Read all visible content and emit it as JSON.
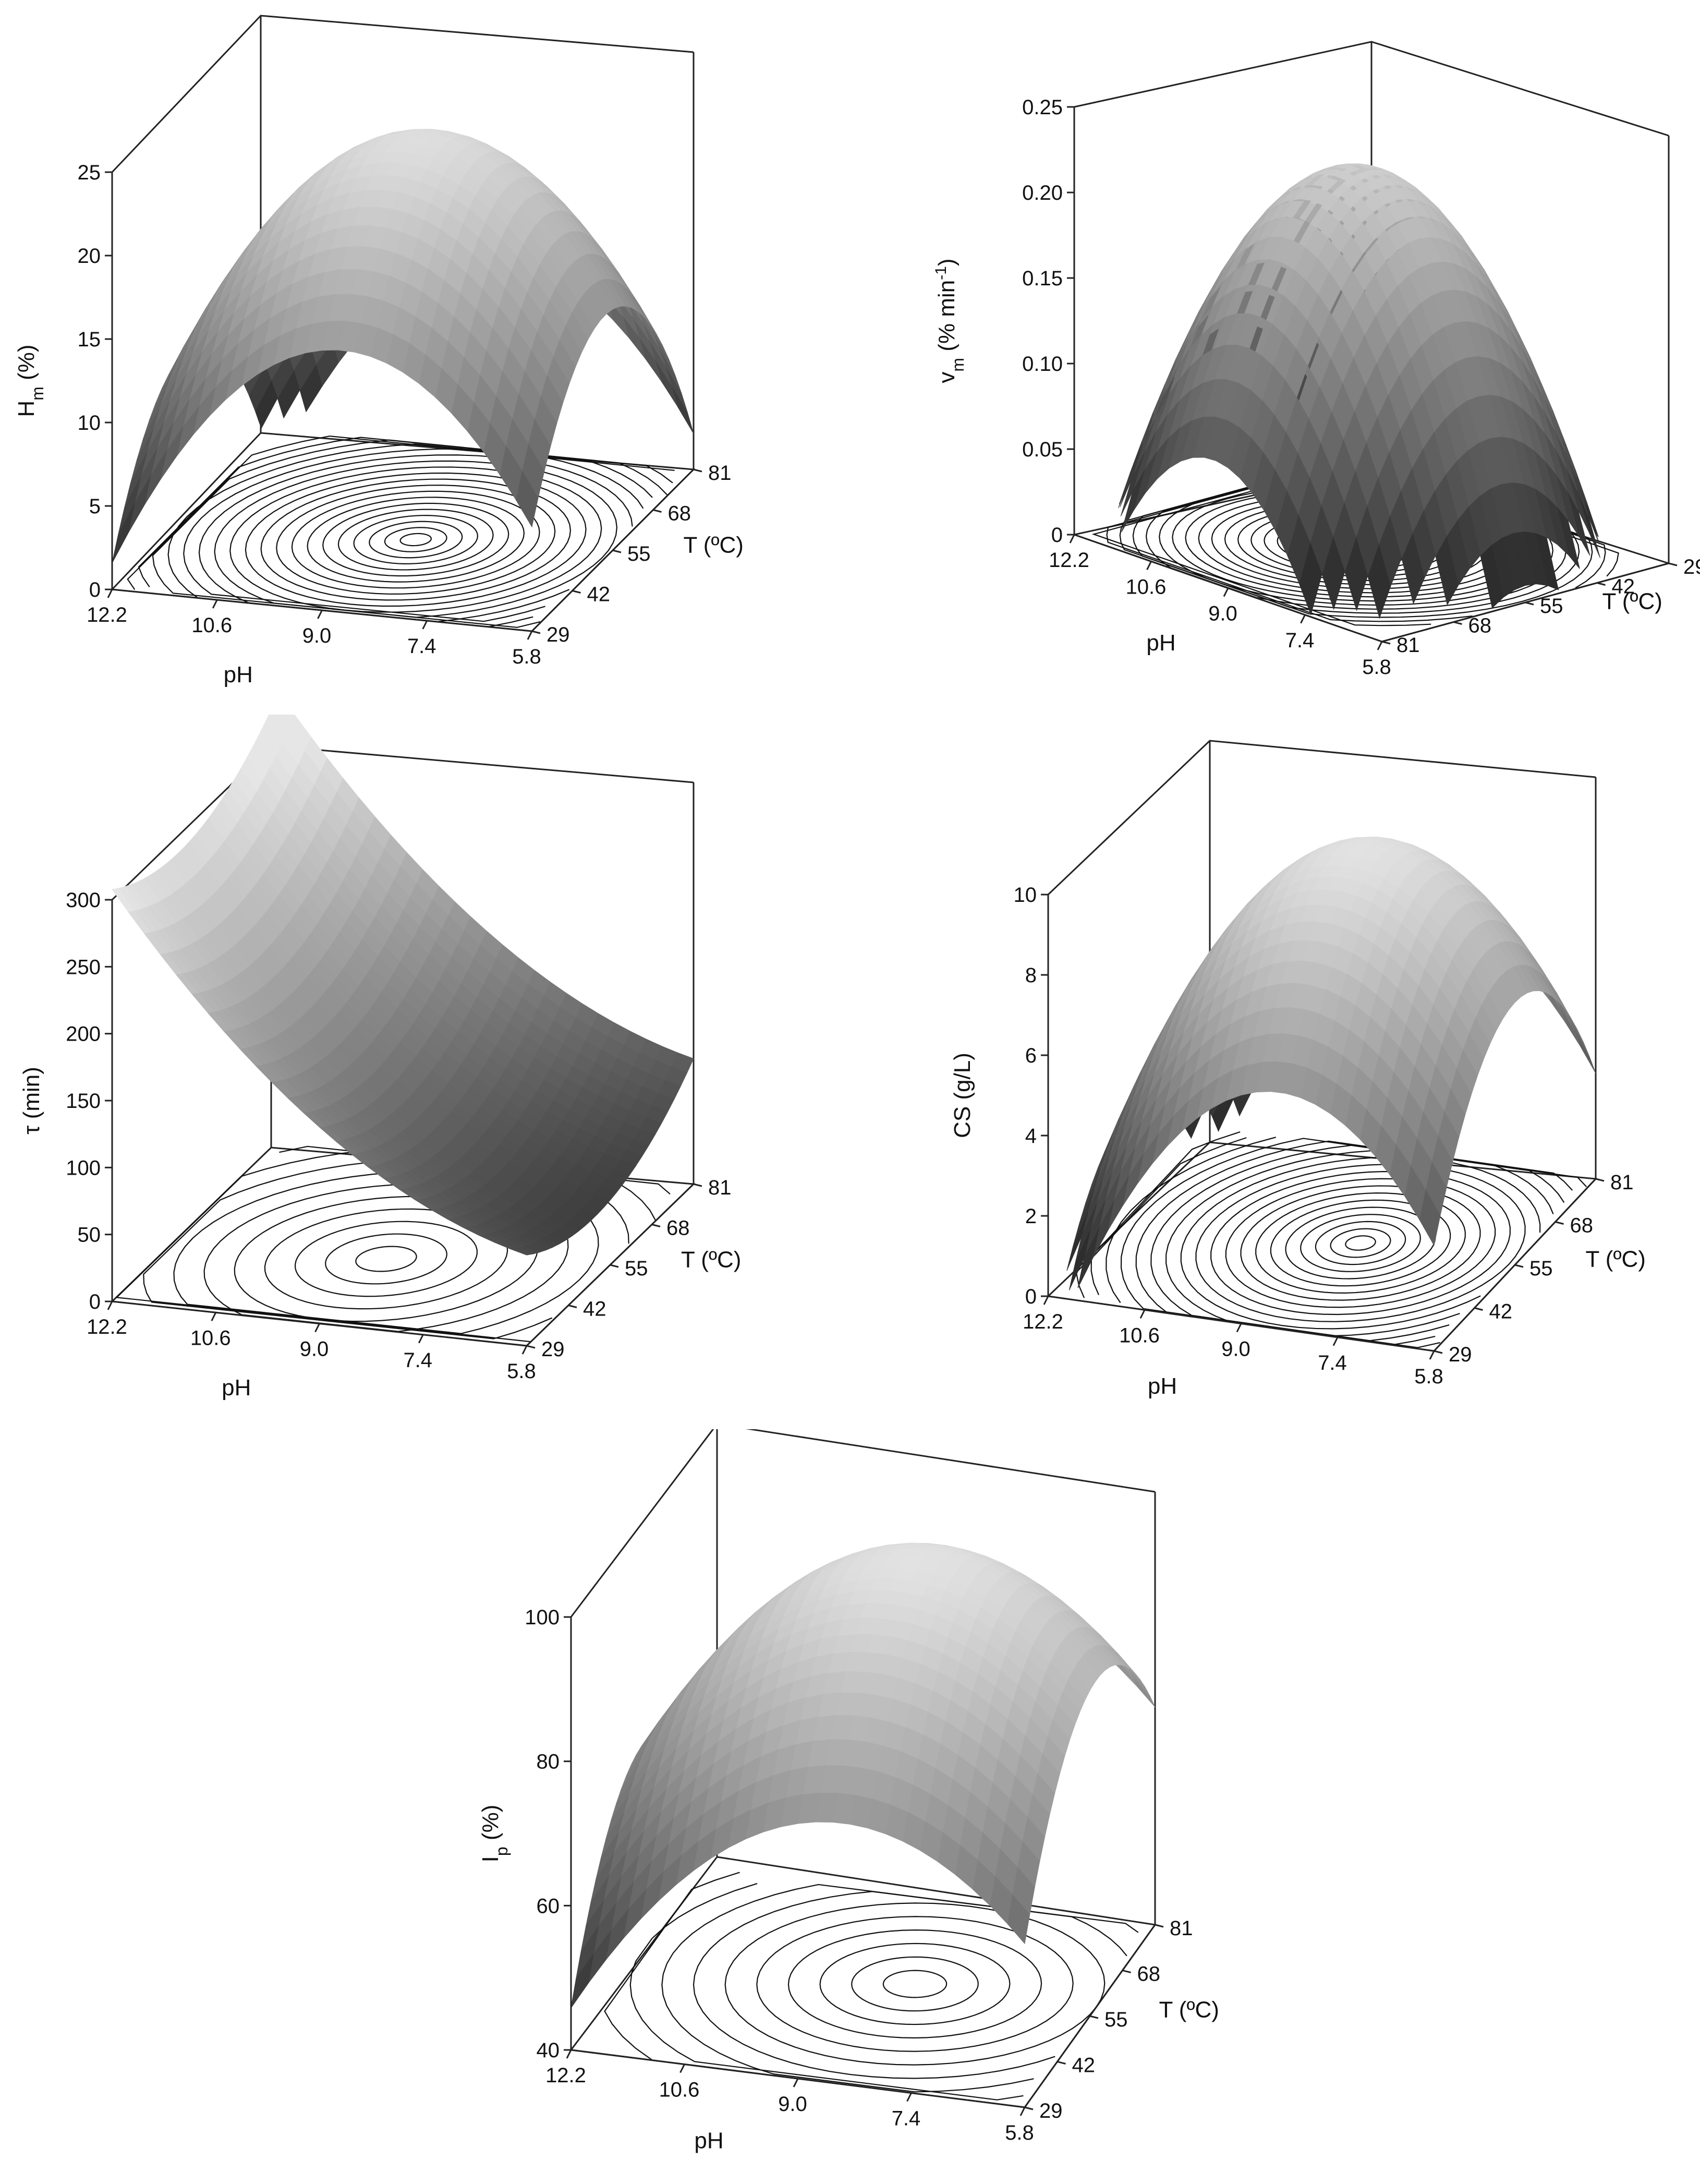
{
  "chart_data": [
    {
      "id": "hm",
      "type": "surface3d",
      "ylabel": "H",
      "ylabel_sub": "m",
      "ylabel_unit": " (%)",
      "xlabel": "pH",
      "zlabel": "T (ºC)",
      "x_ticks": [
        "12.2",
        "10.6",
        "9.0",
        "7.4",
        "5.8"
      ],
      "z_ticks": [
        "29",
        "42",
        "55",
        "68",
        "81"
      ],
      "y_ticks": [
        "0",
        "5",
        "10",
        "15",
        "20",
        "25"
      ],
      "ylim": [
        0,
        25
      ],
      "x_range": [
        5.8,
        12.2
      ],
      "z_range": [
        29,
        81
      ],
      "orientation": "front",
      "peak": {
        "pH": 7.9,
        "T": 55,
        "value": 24
      }
    },
    {
      "id": "vm",
      "type": "surface3d",
      "ylabel": "v",
      "ylabel_sub": "m",
      "ylabel_unit": " (% min",
      "ylabel_sup": "-1",
      "ylabel_end": ")",
      "xlabel": "pH",
      "zlabel": "T (ºC)",
      "x_ticks": [
        "12.2",
        "10.6",
        "9.0",
        "7.4",
        "5.8"
      ],
      "z_ticks": [
        "81",
        "68",
        "55",
        "42",
        "29"
      ],
      "y_ticks": [
        "0",
        "0.05",
        "0.10",
        "0.15",
        "0.20",
        "0.25"
      ],
      "ylim": [
        0,
        0.25
      ],
      "x_range": [
        5.8,
        12.2
      ],
      "z_range": [
        29,
        81
      ],
      "orientation": "rotated",
      "peak": {
        "pH": 8.2,
        "T": 55,
        "value": 0.22
      }
    },
    {
      "id": "tau",
      "type": "surface3d",
      "ylabel": "τ (min)",
      "xlabel": "pH",
      "zlabel": "T (ºC)",
      "x_ticks": [
        "12.2",
        "10.6",
        "9.0",
        "7.4",
        "5.8"
      ],
      "z_ticks": [
        "29",
        "42",
        "55",
        "68",
        "81"
      ],
      "y_ticks": [
        "0",
        "50",
        "100",
        "150",
        "200",
        "250",
        "300"
      ],
      "ylim": [
        0,
        300
      ],
      "x_range": [
        5.8,
        12.2
      ],
      "z_range": [
        29,
        81
      ],
      "orientation": "front",
      "valley": {
        "pH": 8.3,
        "T": 50,
        "value": 5
      }
    },
    {
      "id": "cs",
      "type": "surface3d",
      "ylabel": "CS (g/L)",
      "xlabel": "pH",
      "zlabel": "T (ºC)",
      "x_ticks": [
        "12.2",
        "10.6",
        "9.0",
        "7.4",
        "5.8"
      ],
      "z_ticks": [
        "29",
        "42",
        "55",
        "68",
        "81"
      ],
      "y_ticks": [
        "0",
        "2",
        "4",
        "6",
        "8",
        "10"
      ],
      "ylim": [
        0,
        10
      ],
      "x_range": [
        5.8,
        12.2
      ],
      "z_range": [
        29,
        81
      ],
      "orientation": "front",
      "peak": {
        "pH": 7.4,
        "T": 58,
        "value": 9.8
      }
    },
    {
      "id": "ip",
      "type": "surface3d",
      "ylabel": "I",
      "ylabel_sub": "p",
      "ylabel_unit": " (%)",
      "xlabel": "pH",
      "zlabel": "T (ºC)",
      "x_ticks": [
        "12.2",
        "10.6",
        "9.0",
        "7.4",
        "5.8"
      ],
      "z_ticks": [
        "29",
        "42",
        "55",
        "68",
        "81"
      ],
      "y_ticks": [
        "40",
        "60",
        "80",
        "100"
      ],
      "ylim": [
        40,
        100
      ],
      "x_range": [
        5.8,
        12.2
      ],
      "z_range": [
        29,
        81
      ],
      "orientation": "front",
      "peak": {
        "pH": 7.2,
        "T": 58,
        "value": 99
      }
    }
  ]
}
